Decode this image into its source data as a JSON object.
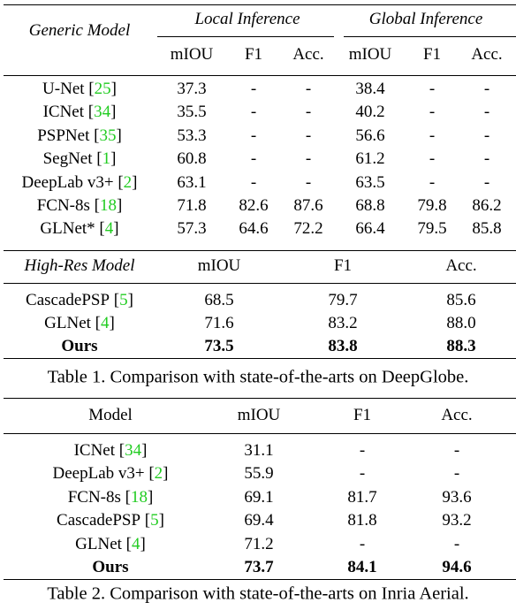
{
  "brackets": [
    "[",
    "]"
  ],
  "table1": {
    "header": {
      "model": "Generic Model",
      "groups": [
        "Local Inference",
        "Global Inference"
      ],
      "metrics": [
        "mIOU",
        "F1",
        "Acc.",
        "mIOU",
        "F1",
        "Acc."
      ]
    },
    "rows": [
      {
        "name": "U-Net",
        "cite": "25",
        "values": [
          "37.3",
          "-",
          "-",
          "38.4",
          "-",
          "-"
        ]
      },
      {
        "name": "ICNet",
        "cite": "34",
        "values": [
          "35.5",
          "-",
          "-",
          "40.2",
          "-",
          "-"
        ]
      },
      {
        "name": "PSPNet",
        "cite": "35",
        "values": [
          "53.3",
          "-",
          "-",
          "56.6",
          "-",
          "-"
        ]
      },
      {
        "name": "SegNet",
        "cite": "1",
        "values": [
          "60.8",
          "-",
          "-",
          "61.2",
          "-",
          "-"
        ]
      },
      {
        "name": "DeepLab v3+",
        "cite": "2",
        "values": [
          "63.1",
          "-",
          "-",
          "63.5",
          "-",
          "-"
        ]
      },
      {
        "name": "FCN-8s",
        "cite": "18",
        "values": [
          "71.8",
          "82.6",
          "87.6",
          "68.8",
          "79.8",
          "86.2"
        ]
      },
      {
        "name": "GLNet*",
        "cite": "4",
        "values": [
          "57.3",
          "64.6",
          "72.2",
          "66.4",
          "79.5",
          "85.8"
        ]
      }
    ],
    "section2": {
      "header": {
        "model": "High-Res Model",
        "metrics": [
          "mIOU",
          "F1",
          "Acc."
        ]
      },
      "rows": [
        {
          "name": "CascadePSP",
          "cite": "5",
          "values": [
            "68.5",
            "79.7",
            "85.6"
          ]
        },
        {
          "name": "GLNet",
          "cite": "4",
          "values": [
            "71.6",
            "83.2",
            "88.0"
          ]
        },
        {
          "name": "Ours",
          "bold": true,
          "values": [
            "73.5",
            "83.8",
            "88.3"
          ]
        }
      ]
    },
    "caption": "Table 1. Comparison with state-of-the-arts on DeepGlobe."
  },
  "table2": {
    "header": {
      "model": "Model",
      "metrics": [
        "mIOU",
        "F1",
        "Acc."
      ]
    },
    "rows": [
      {
        "name": "ICNet",
        "cite": "34",
        "values": [
          "31.1",
          "-",
          "-"
        ]
      },
      {
        "name": "DeepLab v3+",
        "cite": "2",
        "values": [
          "55.9",
          "-",
          "-"
        ]
      },
      {
        "name": "FCN-8s",
        "cite": "18",
        "values": [
          "69.1",
          "81.7",
          "93.6"
        ]
      },
      {
        "name": "CascadePSP",
        "cite": "5",
        "values": [
          "69.4",
          "81.8",
          "93.2"
        ]
      },
      {
        "name": "GLNet",
        "cite": "4",
        "values": [
          "71.2",
          "-",
          "-"
        ]
      },
      {
        "name": "Ours",
        "bold": true,
        "values": [
          "73.7",
          "84.1",
          "94.6"
        ]
      }
    ],
    "caption": "Table 2. Comparison with state-of-the-arts on Inria Aerial."
  }
}
